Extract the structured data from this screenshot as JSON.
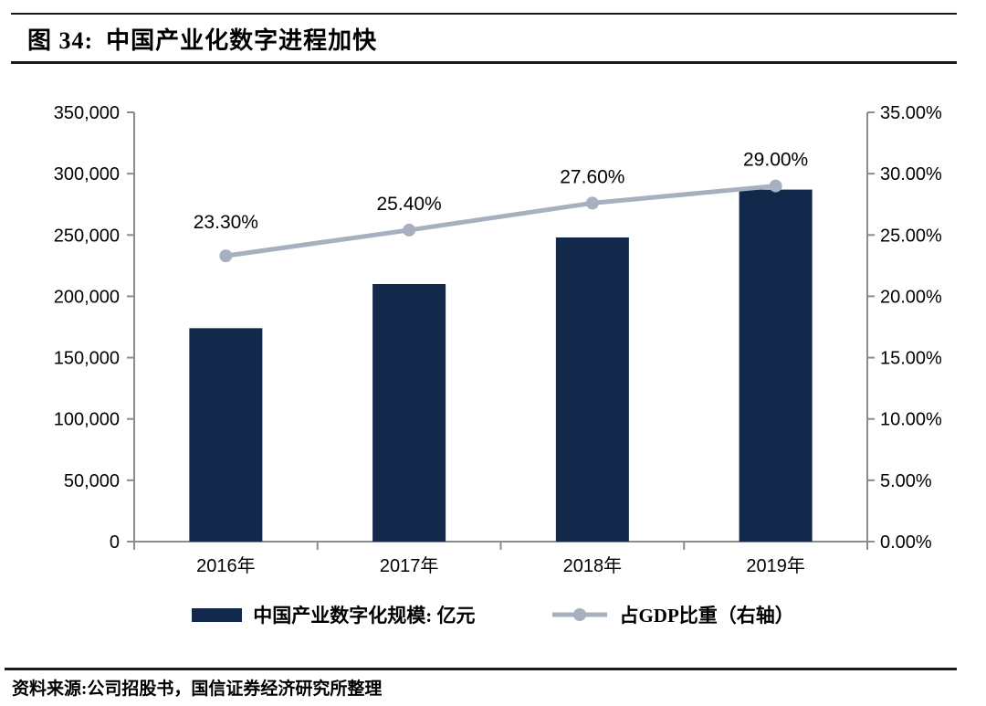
{
  "header": {
    "figure_label": "图 34:",
    "title": "中国产业化数字进程加快"
  },
  "chart_data": {
    "type": "bar",
    "title": "中国产业化数字进程加快",
    "categories": [
      "2016年",
      "2017年",
      "2018年",
      "2019年"
    ],
    "series": [
      {
        "name": "中国产业数字化规模: 亿元",
        "chart": "bar",
        "axis": "left",
        "values": [
          174000,
          210000,
          248000,
          287000
        ]
      },
      {
        "name": "占GDP比重（右轴）",
        "chart": "line",
        "axis": "right",
        "values": [
          23.3,
          25.4,
          27.6,
          29.0
        ],
        "point_labels": [
          "23.30%",
          "25.40%",
          "27.60%",
          "29.00%"
        ]
      }
    ],
    "left_axis": {
      "min": 0,
      "max": 350000,
      "step": 50000,
      "tick_labels_top_to_bottom": [
        "350,000",
        "300,000",
        "250,000",
        "200,000",
        "150,000",
        "100,000",
        "50,000",
        "0"
      ]
    },
    "right_axis": {
      "min": 0,
      "max": 35,
      "step": 5,
      "tick_labels_top_to_bottom": [
        "35.00%",
        "30.00%",
        "25.00%",
        "20.00%",
        "15.00%",
        "10.00%",
        "5.00%",
        "0.00%"
      ]
    },
    "grid": false,
    "legend_position": "bottom"
  },
  "legend": {
    "bar_label": "中国产业数字化规模: 亿元",
    "line_label": "占GDP比重（右轴）"
  },
  "footer": {
    "source": "资料来源:公司招股书，国信证券经济研究所整理"
  },
  "colors": {
    "bar": "#12294B",
    "line": "#A6B0BF",
    "axis": "#8C8C8C",
    "text": "#000000"
  }
}
